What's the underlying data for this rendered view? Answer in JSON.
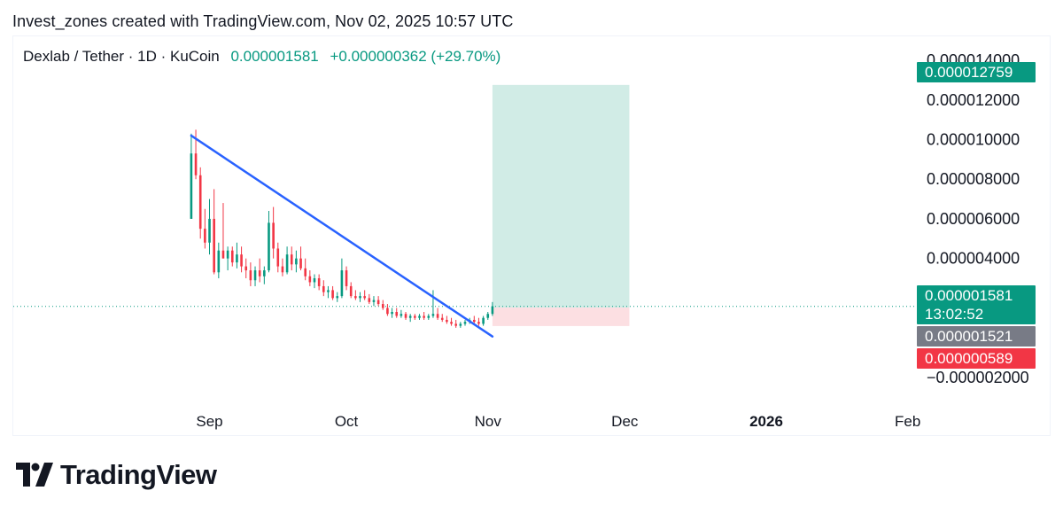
{
  "credit": "Invest_zones created with TradingView.com, Nov 02, 2025 10:57 UTC",
  "legend": {
    "symbol": "Dexlab / Tether · 1D · KuCoin",
    "last": "0.000001581",
    "change": "+0.000000362 (+29.70%)"
  },
  "price_tags": {
    "target": "0.000012759",
    "current": "0.000001581",
    "countdown": "13:02:52",
    "entry": "0.000001521",
    "stop": "0.000000589"
  },
  "logo": {
    "wordmark": "TradingView",
    "icon": "tradingview-logo-icon"
  },
  "colors": {
    "up": "#089981",
    "down": "#f23645",
    "trendline": "#2962ff",
    "target_zone": "#d1ece6",
    "stop_zone": "#fcdfe2",
    "entry_tag": "#787b86"
  },
  "chart_data": {
    "type": "candlestick",
    "symbol": "Dexlab / Tether",
    "interval": "1D",
    "exchange": "KuCoin",
    "x_axis": {
      "tick_labels": [
        "Sep",
        "Oct",
        "Nov",
        "Dec",
        "2026",
        "Feb"
      ],
      "tick_dates": [
        "2025-09-01",
        "2025-10-01",
        "2025-11-01",
        "2025-12-01",
        "2026-01-01",
        "2026-02-01"
      ],
      "range": [
        "2025-07-20",
        "2026-02-03"
      ]
    },
    "y_axis": {
      "tick_values": [
        1.4e-05,
        1.2e-05,
        1e-05,
        8e-06,
        6e-06,
        4e-06,
        2e-06,
        -2e-06
      ],
      "tick_labels": [
        "0.000014000",
        "0.000012000",
        "0.000010000",
        "0.000008000",
        "0.000006000",
        "0.000004000",
        "0.000002000",
        "−0.000002000"
      ],
      "range": [
        -2.1e-06,
        1.49e-05
      ]
    },
    "candles": [
      {
        "date": "2025-08-28",
        "o": 6e-06,
        "h": 1.03e-05,
        "l": 6e-06,
        "c": 9.3e-06
      },
      {
        "date": "2025-08-29",
        "o": 9.3e-06,
        "h": 1.05e-05,
        "l": 8e-06,
        "c": 8.2e-06
      },
      {
        "date": "2025-08-30",
        "o": 8.2e-06,
        "h": 8.6e-06,
        "l": 5e-06,
        "c": 5.5e-06
      },
      {
        "date": "2025-08-31",
        "o": 5.5e-06,
        "h": 6.5e-06,
        "l": 4.5e-06,
        "c": 4.8e-06
      },
      {
        "date": "2025-09-01",
        "o": 4.8e-06,
        "h": 7e-06,
        "l": 4.2e-06,
        "c": 6e-06
      },
      {
        "date": "2025-09-02",
        "o": 6e-06,
        "h": 7.5e-06,
        "l": 3.2e-06,
        "c": 3.3e-06
      },
      {
        "date": "2025-09-03",
        "o": 3.3e-06,
        "h": 4.8e-06,
        "l": 3e-06,
        "c": 4.4e-06
      },
      {
        "date": "2025-09-04",
        "o": 4.4e-06,
        "h": 6.8e-06,
        "l": 4e-06,
        "c": 4e-06
      },
      {
        "date": "2025-09-05",
        "o": 4e-06,
        "h": 4.6e-06,
        "l": 3.4e-06,
        "c": 4.4e-06
      },
      {
        "date": "2025-09-06",
        "o": 4.4e-06,
        "h": 4.6e-06,
        "l": 3.6e-06,
        "c": 3.8e-06
      },
      {
        "date": "2025-09-07",
        "o": 3.8e-06,
        "h": 4.8e-06,
        "l": 3.5e-06,
        "c": 4.2e-06
      },
      {
        "date": "2025-09-08",
        "o": 4.2e-06,
        "h": 4.6e-06,
        "l": 3.3e-06,
        "c": 3.6e-06
      },
      {
        "date": "2025-09-09",
        "o": 3.6e-06,
        "h": 4e-06,
        "l": 3e-06,
        "c": 3.4e-06
      },
      {
        "date": "2025-09-10",
        "o": 3.4e-06,
        "h": 3.8e-06,
        "l": 2.6e-06,
        "c": 2.9e-06
      },
      {
        "date": "2025-09-11",
        "o": 2.9e-06,
        "h": 3.6e-06,
        "l": 2.6e-06,
        "c": 3.4e-06
      },
      {
        "date": "2025-09-12",
        "o": 3.4e-06,
        "h": 4e-06,
        "l": 2.8e-06,
        "c": 3.1e-06
      },
      {
        "date": "2025-09-13",
        "o": 3.1e-06,
        "h": 3.6e-06,
        "l": 2.7e-06,
        "c": 3.4e-06
      },
      {
        "date": "2025-09-14",
        "o": 3.4e-06,
        "h": 6.4e-06,
        "l": 3.3e-06,
        "c": 5.8e-06
      },
      {
        "date": "2025-09-15",
        "o": 5.8e-06,
        "h": 6.6e-06,
        "l": 4e-06,
        "c": 4.5e-06
      },
      {
        "date": "2025-09-16",
        "o": 4.5e-06,
        "h": 4.8e-06,
        "l": 3.3e-06,
        "c": 3.6e-06
      },
      {
        "date": "2025-09-17",
        "o": 3.6e-06,
        "h": 4e-06,
        "l": 3.1e-06,
        "c": 3.3e-06
      },
      {
        "date": "2025-09-18",
        "o": 3.3e-06,
        "h": 4.6e-06,
        "l": 3.2e-06,
        "c": 4.2e-06
      },
      {
        "date": "2025-09-19",
        "o": 4.2e-06,
        "h": 4.6e-06,
        "l": 3.4e-06,
        "c": 3.7e-06
      },
      {
        "date": "2025-09-20",
        "o": 3.7e-06,
        "h": 4.4e-06,
        "l": 3.3e-06,
        "c": 4e-06
      },
      {
        "date": "2025-09-21",
        "o": 4e-06,
        "h": 4.6e-06,
        "l": 3.4e-06,
        "c": 3.5e-06
      },
      {
        "date": "2025-09-22",
        "o": 3.5e-06,
        "h": 4e-06,
        "l": 2.9e-06,
        "c": 3.1e-06
      },
      {
        "date": "2025-09-23",
        "o": 3.1e-06,
        "h": 3.4e-06,
        "l": 2.6e-06,
        "c": 2.8e-06
      },
      {
        "date": "2025-09-24",
        "o": 2.8e-06,
        "h": 3.2e-06,
        "l": 2.5e-06,
        "c": 3e-06
      },
      {
        "date": "2025-09-25",
        "o": 3e-06,
        "h": 3.2e-06,
        "l": 2.4e-06,
        "c": 2.6e-06
      },
      {
        "date": "2025-09-26",
        "o": 2.6e-06,
        "h": 2.9e-06,
        "l": 2.1e-06,
        "c": 2.3e-06
      },
      {
        "date": "2025-09-27",
        "o": 2.3e-06,
        "h": 2.6e-06,
        "l": 2e-06,
        "c": 2.4e-06
      },
      {
        "date": "2025-09-28",
        "o": 2.4e-06,
        "h": 2.6e-06,
        "l": 1.9e-06,
        "c": 2e-06
      },
      {
        "date": "2025-09-29",
        "o": 2e-06,
        "h": 2.3e-06,
        "l": 1.8e-06,
        "c": 2.1e-06
      },
      {
        "date": "2025-09-30",
        "o": 2.1e-06,
        "h": 4e-06,
        "l": 2e-06,
        "c": 3.4e-06
      },
      {
        "date": "2025-10-01",
        "o": 3.4e-06,
        "h": 3.6e-06,
        "l": 2.4e-06,
        "c": 2.6e-06
      },
      {
        "date": "2025-10-02",
        "o": 2.6e-06,
        "h": 2.8e-06,
        "l": 2e-06,
        "c": 2.1e-06
      },
      {
        "date": "2025-10-03",
        "o": 2.1e-06,
        "h": 2.4e-06,
        "l": 1.9e-06,
        "c": 2e-06
      },
      {
        "date": "2025-10-04",
        "o": 2e-06,
        "h": 2.3e-06,
        "l": 1.8e-06,
        "c": 2.1e-06
      },
      {
        "date": "2025-10-05",
        "o": 2.1e-06,
        "h": 2.4e-06,
        "l": 1.9e-06,
        "c": 2e-06
      },
      {
        "date": "2025-10-06",
        "o": 2e-06,
        "h": 2.2e-06,
        "l": 1.7e-06,
        "c": 1.8e-06
      },
      {
        "date": "2025-10-07",
        "o": 1.8e-06,
        "h": 2.1e-06,
        "l": 1.6e-06,
        "c": 1.9e-06
      },
      {
        "date": "2025-10-08",
        "o": 1.9e-06,
        "h": 2.1e-06,
        "l": 1.6e-06,
        "c": 1.7e-06
      },
      {
        "date": "2025-10-09",
        "o": 1.7e-06,
        "h": 1.9e-06,
        "l": 1.4e-06,
        "c": 1.5e-06
      },
      {
        "date": "2025-10-10",
        "o": 1.5e-06,
        "h": 1.7e-06,
        "l": 1.1e-06,
        "c": 1.2e-06
      },
      {
        "date": "2025-10-11",
        "o": 1.2e-06,
        "h": 1.5e-06,
        "l": 1e-06,
        "c": 1.3e-06
      },
      {
        "date": "2025-10-12",
        "o": 1.3e-06,
        "h": 1.5e-06,
        "l": 1e-06,
        "c": 1.1e-06
      },
      {
        "date": "2025-10-13",
        "o": 1.1e-06,
        "h": 1.4e-06,
        "l": 1e-06,
        "c": 1.2e-06
      },
      {
        "date": "2025-10-14",
        "o": 1.2e-06,
        "h": 1.3e-06,
        "l": 9e-07,
        "c": 1e-06
      },
      {
        "date": "2025-10-15",
        "o": 1e-06,
        "h": 1.2e-06,
        "l": 8e-07,
        "c": 1.1e-06
      },
      {
        "date": "2025-10-16",
        "o": 1.1e-06,
        "h": 1.2e-06,
        "l": 9e-07,
        "c": 1e-06
      },
      {
        "date": "2025-10-17",
        "o": 1e-06,
        "h": 1.2e-06,
        "l": 9e-07,
        "c": 1.1e-06
      },
      {
        "date": "2025-10-18",
        "o": 1.1e-06,
        "h": 1.3e-06,
        "l": 9e-07,
        "c": 1e-06
      },
      {
        "date": "2025-10-19",
        "o": 1e-06,
        "h": 1.2e-06,
        "l": 9e-07,
        "c": 1.1e-06
      },
      {
        "date": "2025-10-20",
        "o": 1.1e-06,
        "h": 2.4e-06,
        "l": 1e-06,
        "c": 1.2e-06
      },
      {
        "date": "2025-10-21",
        "o": 1.2e-06,
        "h": 1.5e-06,
        "l": 9e-07,
        "c": 1e-06
      },
      {
        "date": "2025-10-22",
        "o": 1e-06,
        "h": 1.2e-06,
        "l": 8e-07,
        "c": 9e-07
      },
      {
        "date": "2025-10-23",
        "o": 9e-07,
        "h": 1.1e-06,
        "l": 7e-07,
        "c": 8e-07
      },
      {
        "date": "2025-10-24",
        "o": 8e-07,
        "h": 1e-06,
        "l": 6e-07,
        "c": 7e-07
      },
      {
        "date": "2025-10-25",
        "o": 7e-07,
        "h": 9e-07,
        "l": 5e-07,
        "c": 6e-07
      },
      {
        "date": "2025-10-26",
        "o": 6e-07,
        "h": 8e-07,
        "l": 5e-07,
        "c": 7e-07
      },
      {
        "date": "2025-10-27",
        "o": 7e-07,
        "h": 9e-07,
        "l": 6e-07,
        "c": 8e-07
      },
      {
        "date": "2025-10-28",
        "o": 8e-07,
        "h": 1e-06,
        "l": 7e-07,
        "c": 9e-07
      },
      {
        "date": "2025-10-29",
        "o": 9e-07,
        "h": 1.1e-06,
        "l": 7e-07,
        "c": 8e-07
      },
      {
        "date": "2025-10-30",
        "o": 8e-07,
        "h": 1e-06,
        "l": 6e-07,
        "c": 7e-07
      },
      {
        "date": "2025-10-31",
        "o": 7e-07,
        "h": 1.1e-06,
        "l": 6e-07,
        "c": 1e-06
      },
      {
        "date": "2025-11-01",
        "o": 1e-06,
        "h": 1.3e-06,
        "l": 9e-07,
        "c": 1.2e-06
      },
      {
        "date": "2025-11-02",
        "o": 1.2e-06,
        "h": 1.8e-06,
        "l": 1.1e-06,
        "c": 1.581e-06
      }
    ],
    "trendline": {
      "from": {
        "date": "2025-08-28",
        "price": 1.02e-05
      },
      "to": {
        "date": "2025-11-02",
        "price": 6e-08
      }
    },
    "long_position": {
      "start_date": "2025-11-02",
      "end_date": "2025-12-02",
      "entry": 1.521e-06,
      "target": 1.2759e-05,
      "stop": 5.89e-07
    },
    "current_price_line": 1.581e-06,
    "grid": false,
    "legend_placement": "top-left"
  }
}
